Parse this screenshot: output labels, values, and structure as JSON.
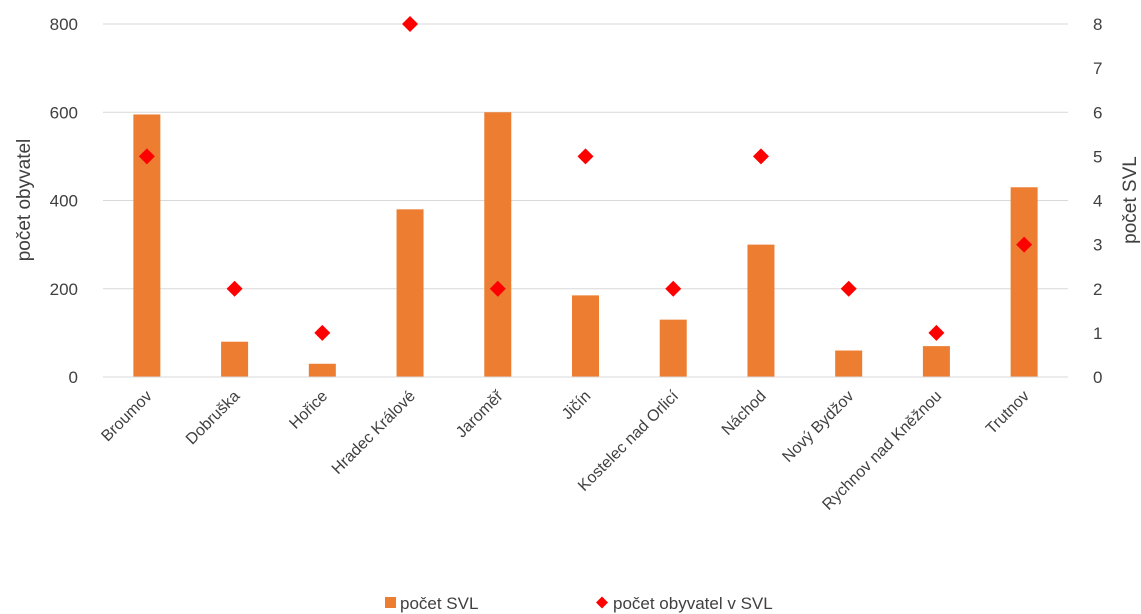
{
  "chart_data": {
    "type": "bar",
    "categories": [
      "Broumov",
      "Dobruška",
      "Hořice",
      "Hradec Králové",
      "Jaroměř",
      "Jičín",
      "Kostelec nad Orlicí",
      "Náchod",
      "Nový Bydžov",
      "Rychnov nad Kněžnou",
      "Trutnov"
    ],
    "series": [
      {
        "name": "počet SVL",
        "type": "bar",
        "axis": "left",
        "color": "#ED7D31",
        "values": [
          595,
          80,
          30,
          380,
          600,
          185,
          130,
          300,
          60,
          70,
          430
        ]
      },
      {
        "name": "počet obyvatel v SVL",
        "type": "scatter",
        "marker": "diamond",
        "axis": "right",
        "color": "#FF0000",
        "values": [
          5,
          2,
          1,
          8,
          2,
          5,
          2,
          5,
          2,
          1,
          3
        ]
      }
    ],
    "y_left": {
      "label": "počet obyvatel",
      "ylim": [
        0,
        800
      ],
      "ticks": [
        0,
        200,
        400,
        600,
        800
      ]
    },
    "y_right": {
      "label": "počet SVL",
      "ylim": [
        0,
        8
      ],
      "ticks": [
        0,
        1,
        2,
        3,
        4,
        5,
        6,
        7,
        8
      ]
    },
    "grid": true,
    "legend_position": "bottom"
  }
}
